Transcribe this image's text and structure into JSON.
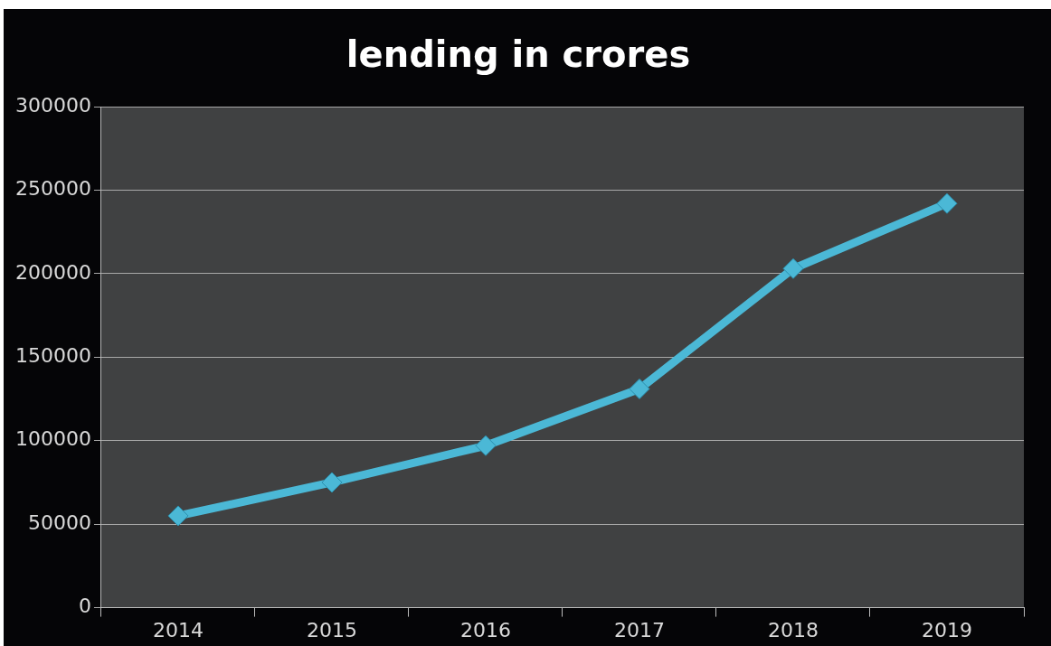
{
  "chart_data": {
    "type": "line",
    "title": "lending in crores",
    "categories": [
      "2014",
      "2015",
      "2016",
      "2017",
      "2018",
      "2019"
    ],
    "values": [
      55000,
      75000,
      97000,
      131000,
      203000,
      242000
    ],
    "color": "#4bb8d6",
    "ylim": [
      0,
      300000
    ],
    "yticks": [
      0,
      50000,
      100000,
      150000,
      200000,
      250000,
      300000
    ],
    "grid": "y",
    "marker": "diamond",
    "line_style": "solid",
    "legend": false
  }
}
